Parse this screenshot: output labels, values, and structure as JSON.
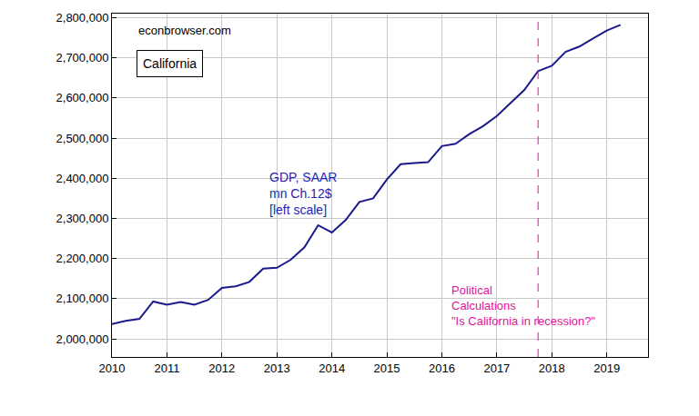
{
  "chart_data": {
    "type": "line",
    "x": [
      2010.0,
      2010.25,
      2010.5,
      2010.75,
      2011.0,
      2011.25,
      2011.5,
      2011.75,
      2012.0,
      2012.25,
      2012.5,
      2012.75,
      2013.0,
      2013.25,
      2013.5,
      2013.75,
      2014.0,
      2014.25,
      2014.5,
      2014.75,
      2015.0,
      2015.25,
      2015.5,
      2015.75,
      2016.0,
      2016.25,
      2016.5,
      2016.75,
      2017.0,
      2017.25,
      2017.5,
      2017.75,
      2018.0,
      2018.25,
      2018.5,
      2018.75,
      2019.0,
      2019.25
    ],
    "series": [
      {
        "name": "GDP, SAAR",
        "color": "#1a1a8c",
        "values": [
          2037000,
          2045000,
          2050000,
          2093000,
          2085000,
          2092000,
          2085000,
          2097000,
          2127000,
          2131000,
          2142000,
          2175000,
          2177000,
          2197000,
          2228000,
          2283000,
          2265000,
          2296000,
          2341000,
          2350000,
          2397000,
          2435000,
          2438000,
          2440000,
          2480000,
          2486000,
          2510000,
          2530000,
          2555000,
          2588000,
          2620000,
          2667000,
          2680000,
          2715000,
          2728000,
          2748000,
          2768000,
          2782000
        ]
      }
    ],
    "xlim": [
      2010,
      2019.75
    ],
    "xticks": [
      2010,
      2011,
      2012,
      2013,
      2014,
      2015,
      2016,
      2017,
      2018,
      2019
    ],
    "ylim": [
      1955000,
      2810000
    ],
    "yticks": [
      {
        "value": 2000000,
        "label": "2,000,000"
      },
      {
        "value": 2100000,
        "label": "2,100,000"
      },
      {
        "value": 2200000,
        "label": "2,200,000"
      },
      {
        "value": 2300000,
        "label": "2,300,000"
      },
      {
        "value": 2400000,
        "label": "2,400,000"
      },
      {
        "value": 2500000,
        "label": "2,500,000"
      },
      {
        "value": 2600000,
        "label": "2,600,000"
      },
      {
        "value": 2700000,
        "label": "2,700,000"
      },
      {
        "value": 2800000,
        "label": "2,800,000"
      }
    ],
    "grid": true,
    "event_line": {
      "x": 2017.75,
      "color": "#e6109e",
      "line_style": "dashed"
    },
    "annotations": [
      {
        "text": "econbrowser.com",
        "color": "#000000"
      },
      {
        "text": "California",
        "color": "#000000"
      },
      {
        "text": "GDP, SAAR\nmn Ch.12$\n[left scale]",
        "color": "#2424b4"
      },
      {
        "text": "Political\nCalculations\n\"Is California in recession?\"",
        "color": "#e6109e"
      }
    ]
  }
}
